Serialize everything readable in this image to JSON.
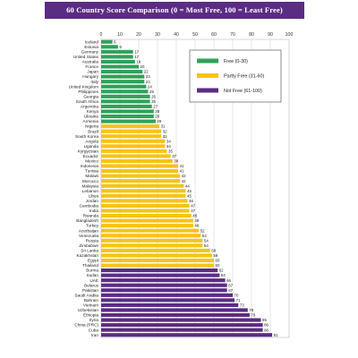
{
  "title": "60 Country Score Comparison (0 = Most Free, 100 = Least Free)",
  "colors": {
    "free": "#2fa25a",
    "partly": "#f6c318",
    "notfree": "#5b2c83",
    "title_bg": "#5b2c83"
  },
  "chart_data": {
    "type": "bar",
    "orientation": "horizontal",
    "title": "60 Country Score Comparison (0 = Most Free, 100 = Least Free)",
    "xlim": [
      0,
      100
    ],
    "xticks": [
      0,
      10,
      20,
      30,
      40,
      50,
      60,
      70,
      80,
      90,
      100
    ],
    "grid": true,
    "legend_position": "top-right",
    "legend": [
      {
        "label": "Free (0-30)",
        "status": "free"
      },
      {
        "label": "Partly Free (31-60)",
        "status": "partly"
      },
      {
        "label": "Not Free (61-100)",
        "status": "notfree"
      }
    ],
    "bars": [
      {
        "country": "Iceland",
        "value": 6,
        "status": "free"
      },
      {
        "country": "Estonia",
        "value": 9,
        "status": "free"
      },
      {
        "country": "Germany",
        "value": 17,
        "status": "free"
      },
      {
        "country": "United States",
        "value": 17,
        "status": "free"
      },
      {
        "country": "Australia",
        "value": 18,
        "status": "free"
      },
      {
        "country": "France",
        "value": 20,
        "status": "free"
      },
      {
        "country": "Japan",
        "value": 22,
        "status": "free"
      },
      {
        "country": "Hungary",
        "value": 23,
        "status": "free"
      },
      {
        "country": "Italy",
        "value": 23,
        "status": "free"
      },
      {
        "country": "United Kingdom",
        "value": 24,
        "status": "free"
      },
      {
        "country": "Philippines",
        "value": 25,
        "status": "free"
      },
      {
        "country": "Georgia",
        "value": 26,
        "status": "free"
      },
      {
        "country": "South Africa",
        "value": 26,
        "status": "free"
      },
      {
        "country": "Argentina",
        "value": 27,
        "status": "free"
      },
      {
        "country": "Kenya",
        "value": 28,
        "status": "free"
      },
      {
        "country": "Ukraine",
        "value": 28,
        "status": "free"
      },
      {
        "country": "Armenia",
        "value": 29,
        "status": "free"
      },
      {
        "country": "Nigeria",
        "value": 31,
        "status": "partly"
      },
      {
        "country": "Brazil",
        "value": 32,
        "status": "partly"
      },
      {
        "country": "South Korea",
        "value": 32,
        "status": "partly"
      },
      {
        "country": "Angola",
        "value": 34,
        "status": "partly"
      },
      {
        "country": "Uganda",
        "value": 34,
        "status": "partly"
      },
      {
        "country": "Kyrgyzstan",
        "value": 35,
        "status": "partly"
      },
      {
        "country": "Ecuador",
        "value": 37,
        "status": "partly"
      },
      {
        "country": "Mexico",
        "value": 38,
        "status": "partly"
      },
      {
        "country": "Indonesia",
        "value": 41,
        "status": "partly"
      },
      {
        "country": "Tunisia",
        "value": 41,
        "status": "partly"
      },
      {
        "country": "Malawi",
        "value": 42,
        "status": "partly"
      },
      {
        "country": "Morocco",
        "value": 42,
        "status": "partly"
      },
      {
        "country": "Malaysia",
        "value": 44,
        "status": "partly"
      },
      {
        "country": "Lebanon",
        "value": 45,
        "status": "partly"
      },
      {
        "country": "Libya",
        "value": 45,
        "status": "partly"
      },
      {
        "country": "Jordan",
        "value": 46,
        "status": "partly"
      },
      {
        "country": "Cambodia",
        "value": 47,
        "status": "partly"
      },
      {
        "country": "India",
        "value": 47,
        "status": "partly"
      },
      {
        "country": "Rwanda",
        "value": 48,
        "status": "partly"
      },
      {
        "country": "Bangladesh",
        "value": 49,
        "status": "partly"
      },
      {
        "country": "Turkey",
        "value": 49,
        "status": "partly"
      },
      {
        "country": "Azerbaijan",
        "value": 52,
        "status": "partly"
      },
      {
        "country": "Venezuela",
        "value": 53,
        "status": "partly"
      },
      {
        "country": "Russia",
        "value": 54,
        "status": "partly"
      },
      {
        "country": "Zimbabwe",
        "value": 54,
        "status": "partly"
      },
      {
        "country": "Sri Lanka",
        "value": 58,
        "status": "partly"
      },
      {
        "country": "Kazakhstan",
        "value": 59,
        "status": "partly"
      },
      {
        "country": "Egypt",
        "value": 60,
        "status": "partly"
      },
      {
        "country": "Thailand",
        "value": 60,
        "status": "partly"
      },
      {
        "country": "Burma",
        "value": 62,
        "status": "notfree"
      },
      {
        "country": "Sudan",
        "value": 63,
        "status": "notfree"
      },
      {
        "country": "UAE",
        "value": 66,
        "status": "notfree"
      },
      {
        "country": "Belarus",
        "value": 67,
        "status": "notfree"
      },
      {
        "country": "Pakistan",
        "value": 67,
        "status": "notfree"
      },
      {
        "country": "Saudi Arabia",
        "value": 70,
        "status": "notfree"
      },
      {
        "country": "Bahrain",
        "value": 71,
        "status": "notfree"
      },
      {
        "country": "Vietnam",
        "value": 73,
        "status": "notfree"
      },
      {
        "country": "Uzbekistan",
        "value": 78,
        "status": "notfree"
      },
      {
        "country": "Ethiopia",
        "value": 79,
        "status": "notfree"
      },
      {
        "country": "Syria",
        "value": 85,
        "status": "notfree"
      },
      {
        "country": "China (PRC)",
        "value": 86,
        "status": "notfree"
      },
      {
        "country": "Cuba",
        "value": 86,
        "status": "notfree"
      },
      {
        "country": "Iran",
        "value": 91,
        "status": "notfree"
      }
    ]
  }
}
